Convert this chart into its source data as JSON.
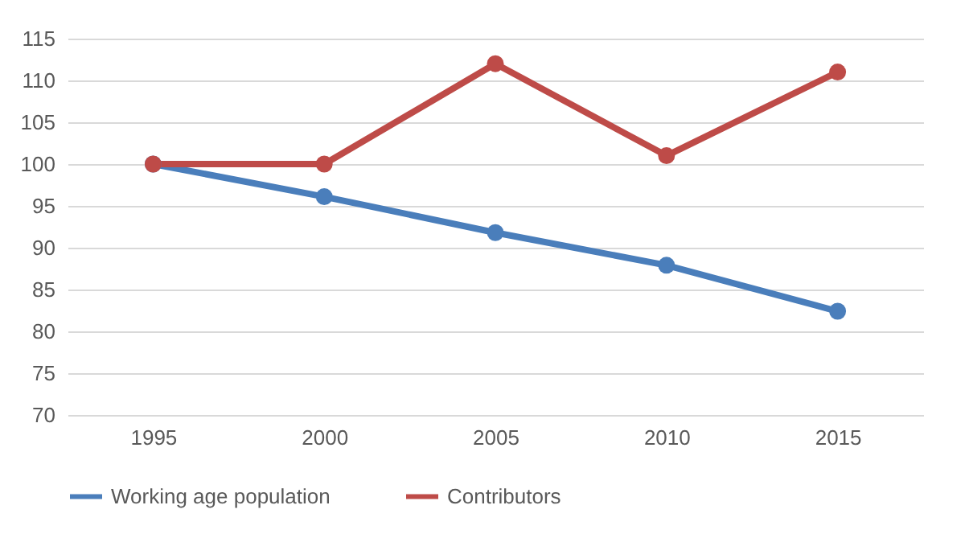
{
  "chart_data": {
    "type": "line",
    "categories": [
      "1995",
      "2000",
      "2005",
      "2010",
      "2015"
    ],
    "series": [
      {
        "name": "Working age population",
        "color": "#4a7ebb",
        "values": [
          100,
          96.1,
          91.8,
          87.9,
          82.4
        ]
      },
      {
        "name": "Contributors",
        "color": "#be4b48",
        "values": [
          100,
          100,
          112,
          101,
          111
        ]
      }
    ],
    "ylim": [
      70,
      115
    ],
    "yticks": [
      70,
      75,
      80,
      85,
      90,
      95,
      100,
      105,
      110,
      115
    ],
    "grid": "y",
    "legend": "bottom",
    "marker": "circle",
    "line_style": "solid"
  }
}
